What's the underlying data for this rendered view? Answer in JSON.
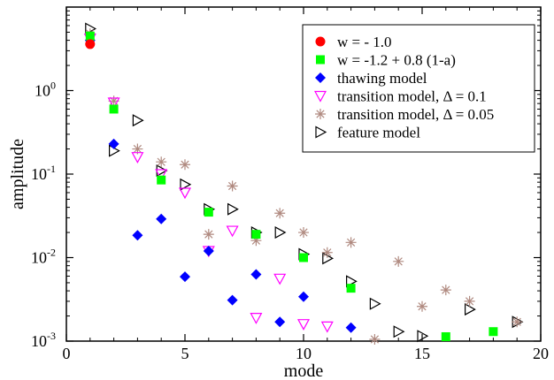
{
  "chart_data": {
    "type": "scatter",
    "xlabel": "mode",
    "ylabel": "amplitude",
    "xlim": [
      0,
      20
    ],
    "ylim": [
      0.001,
      10
    ],
    "yscale": "log",
    "xticks": [
      0,
      5,
      10,
      15,
      20
    ],
    "xtick_labels": [
      "0",
      "5",
      "10",
      "15",
      "20"
    ],
    "yticks": [
      0.001,
      0.01,
      0.1,
      1
    ],
    "ytick_labels": [
      {
        "base": "10",
        "exp": "-3"
      },
      {
        "base": "10",
        "exp": "-2"
      },
      {
        "base": "10",
        "exp": "-1"
      },
      {
        "base": "10",
        "exp": "0"
      }
    ],
    "grid": false,
    "legend_position": "top-right",
    "series": [
      {
        "name": "w = - 1.0",
        "marker": "circle",
        "color": "#ff0000",
        "points": [
          [
            1,
            3.6
          ]
        ]
      },
      {
        "name": "w = -1.2 + 0.8 (1-a)",
        "marker": "square",
        "color": "#00ff00",
        "points": [
          [
            1,
            4.5
          ],
          [
            2,
            0.6
          ],
          [
            4,
            0.085
          ],
          [
            6,
            0.035
          ],
          [
            8,
            0.019
          ],
          [
            10,
            0.01
          ],
          [
            12,
            0.0043
          ],
          [
            16,
            0.00113
          ],
          [
            18,
            0.0013
          ]
        ]
      },
      {
        "name": "thawing model",
        "marker": "diamond",
        "color": "#0000ff",
        "points": [
          [
            1,
            4.0
          ],
          [
            2,
            0.23
          ],
          [
            3,
            0.0185
          ],
          [
            4,
            0.029
          ],
          [
            5,
            0.0059
          ],
          [
            6,
            0.012
          ],
          [
            7,
            0.0031
          ],
          [
            8,
            0.0063
          ],
          [
            9,
            0.0017
          ],
          [
            10,
            0.0034
          ],
          [
            12,
            0.00145
          ]
        ]
      },
      {
        "name": "transition model, Δ = 0.1",
        "marker": "triangle-down",
        "color": "#ff00ff",
        "points": [
          [
            1,
            4.2
          ],
          [
            2,
            0.72
          ],
          [
            3,
            0.16
          ],
          [
            4,
            0.1
          ],
          [
            5,
            0.06
          ],
          [
            6,
            0.012
          ],
          [
            7,
            0.021
          ],
          [
            8,
            0.0019
          ],
          [
            9,
            0.0056
          ],
          [
            10,
            0.0016
          ],
          [
            11,
            0.0015
          ]
        ]
      },
      {
        "name": "transition model, Δ = 0.05",
        "marker": "asterisk",
        "color": "#b08a80",
        "points": [
          [
            1,
            4.8
          ],
          [
            2,
            0.75
          ],
          [
            3,
            0.2
          ],
          [
            4,
            0.14
          ],
          [
            5,
            0.13
          ],
          [
            6,
            0.019
          ],
          [
            7,
            0.072
          ],
          [
            8,
            0.016
          ],
          [
            9,
            0.034
          ],
          [
            10,
            0.02
          ],
          [
            11,
            0.0115
          ],
          [
            12,
            0.0152
          ],
          [
            13,
            0.00105
          ],
          [
            14,
            0.009
          ],
          [
            15,
            0.0026
          ],
          [
            16,
            0.0041
          ],
          [
            17,
            0.003
          ],
          [
            19,
            0.0017
          ]
        ]
      },
      {
        "name": "feature model",
        "marker": "triangle-right",
        "color": "#000000",
        "points": [
          [
            1,
            5.5
          ],
          [
            2,
            0.19
          ],
          [
            3,
            0.44
          ],
          [
            4,
            0.11
          ],
          [
            5,
            0.075
          ],
          [
            6,
            0.038
          ],
          [
            7,
            0.038
          ],
          [
            8,
            0.02
          ],
          [
            9,
            0.02
          ],
          [
            10,
            0.011
          ],
          [
            11,
            0.0098
          ],
          [
            12,
            0.0052
          ],
          [
            13,
            0.0028
          ],
          [
            14,
            0.0013
          ],
          [
            15,
            0.00115
          ],
          [
            17,
            0.0024
          ],
          [
            19,
            0.0017
          ]
        ]
      }
    ]
  }
}
